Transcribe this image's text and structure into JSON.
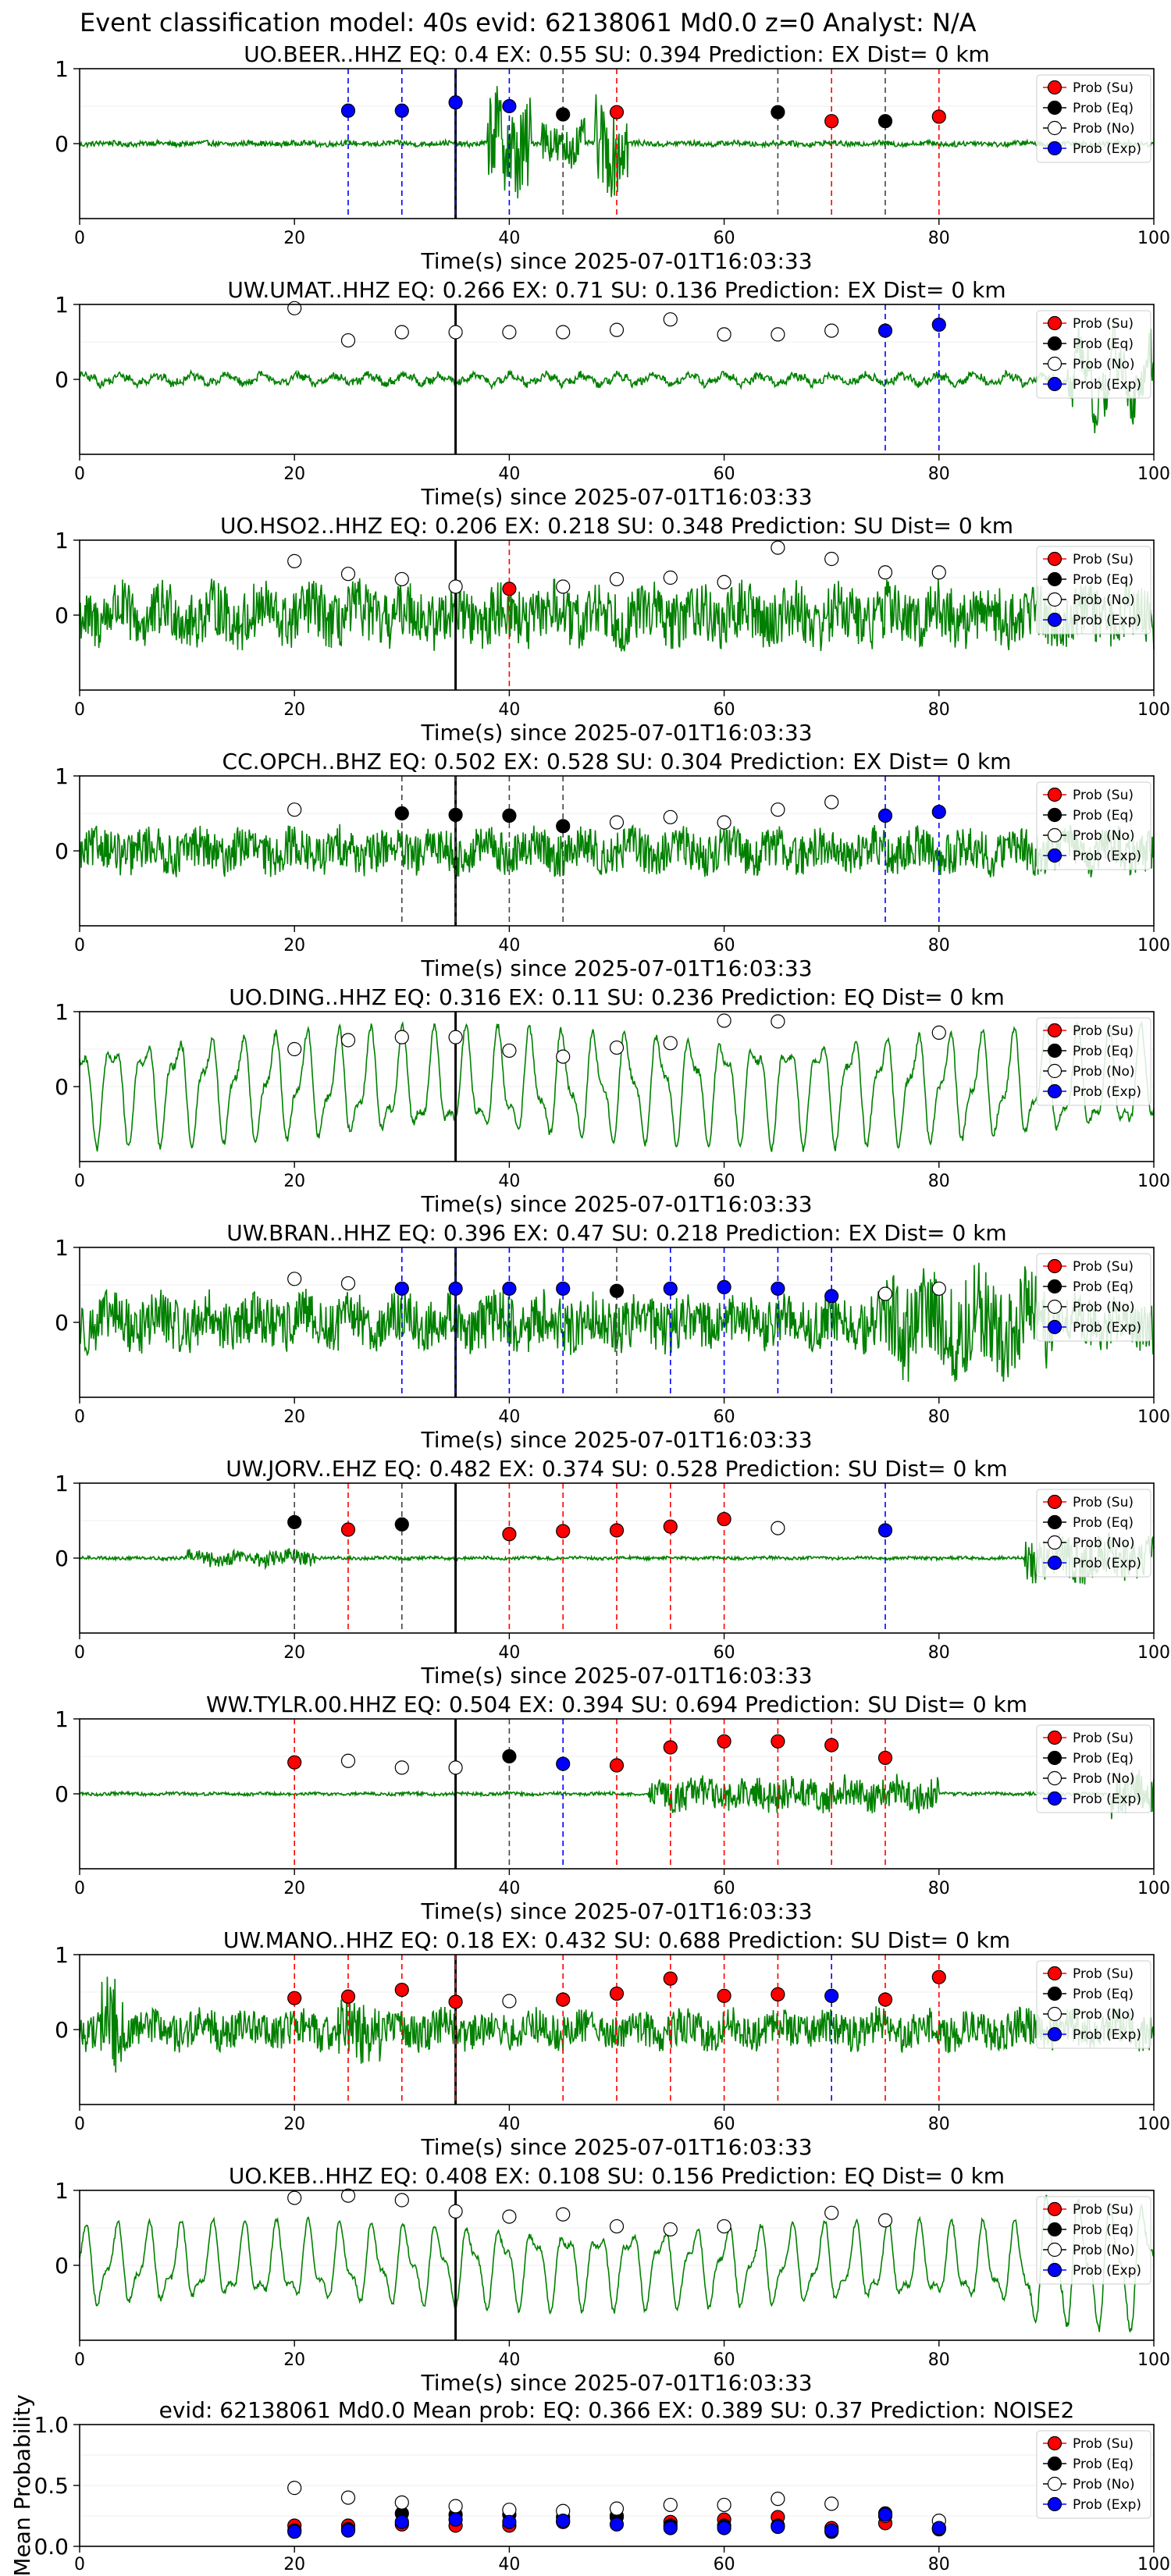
{
  "figure_title": "Event classification model: 40s evid: 62138061 Md0.0 z=0 Analyst: N/A",
  "legend_labels": [
    "Prob (Su)",
    "Prob (Eq)",
    "Prob (No)",
    "Prob (Exp)"
  ],
  "colors": {
    "su": "#ff0000",
    "eq": "#000000",
    "no": "#ffffff",
    "exp": "#0000ff",
    "trace": "#008000",
    "origin_line": "#000000"
  },
  "chart_data": [
    {
      "type": "line",
      "title": "UO.BEER..HHZ   EQ: 0.4  EX: 0.55  SU: 0.394   Prediction: EX    Dist= 0 km",
      "xlabel": "Time(s) since 2025-07-01T16:03:33",
      "ylabel": "",
      "xlim": [
        0,
        100
      ],
      "ylim": [
        -1,
        1
      ],
      "xticks": [
        0,
        20,
        40,
        60,
        80,
        100
      ],
      "yticks": [
        0,
        1
      ],
      "origin_time": 35,
      "trace": {
        "style": "bursts",
        "base_amp": 0.05,
        "bursts": [
          [
            38,
            42,
            0.9
          ],
          [
            43,
            47,
            0.4
          ],
          [
            48,
            51,
            0.8
          ]
        ]
      },
      "points": [
        {
          "x": 25,
          "cls": "exp",
          "p": 0.44
        },
        {
          "x": 30,
          "cls": "exp",
          "p": 0.44
        },
        {
          "x": 35,
          "cls": "exp",
          "p": 0.55
        },
        {
          "x": 40,
          "cls": "exp",
          "p": 0.5
        },
        {
          "x": 45,
          "cls": "eq",
          "p": 0.39
        },
        {
          "x": 50,
          "cls": "su",
          "p": 0.42
        },
        {
          "x": 65,
          "cls": "eq",
          "p": 0.42
        },
        {
          "x": 70,
          "cls": "su",
          "p": 0.3
        },
        {
          "x": 75,
          "cls": "eq",
          "p": 0.3
        },
        {
          "x": 80,
          "cls": "su",
          "p": 0.36
        }
      ]
    },
    {
      "type": "line",
      "title": "UW.UMAT..HHZ   EQ: 0.266  EX: 0.71  SU: 0.136   Prediction: EX    Dist= 0 km",
      "xlabel": "Time(s) since 2025-07-01T16:03:33",
      "ylabel": "",
      "xlim": [
        0,
        100
      ],
      "ylim": [
        -1,
        1
      ],
      "xticks": [
        0,
        20,
        40,
        60,
        80,
        100
      ],
      "yticks": [
        0,
        1
      ],
      "origin_time": 35,
      "trace": {
        "style": "steady",
        "base_amp": 0.12,
        "bursts": [
          [
            92,
            100,
            0.8
          ]
        ]
      },
      "points": [
        {
          "x": 20,
          "cls": "no",
          "p": 0.95
        },
        {
          "x": 25,
          "cls": "no",
          "p": 0.52
        },
        {
          "x": 30,
          "cls": "no",
          "p": 0.63
        },
        {
          "x": 35,
          "cls": "no",
          "p": 0.63
        },
        {
          "x": 40,
          "cls": "no",
          "p": 0.63
        },
        {
          "x": 45,
          "cls": "no",
          "p": 0.63
        },
        {
          "x": 50,
          "cls": "no",
          "p": 0.66
        },
        {
          "x": 55,
          "cls": "no",
          "p": 0.8
        },
        {
          "x": 60,
          "cls": "no",
          "p": 0.6
        },
        {
          "x": 65,
          "cls": "no",
          "p": 0.6
        },
        {
          "x": 70,
          "cls": "no",
          "p": 0.65
        },
        {
          "x": 75,
          "cls": "exp",
          "p": 0.65
        },
        {
          "x": 80,
          "cls": "exp",
          "p": 0.73
        }
      ]
    },
    {
      "type": "line",
      "title": "UO.HSO2..HHZ   EQ: 0.206  EX: 0.218  SU: 0.348   Prediction: SU    Dist= 0 km",
      "xlabel": "Time(s) since 2025-07-01T16:03:33",
      "ylabel": "",
      "xlim": [
        0,
        100
      ],
      "ylim": [
        -1,
        1
      ],
      "xticks": [
        0,
        20,
        40,
        60,
        80,
        100
      ],
      "yticks": [
        0,
        1
      ],
      "origin_time": 35,
      "trace": {
        "style": "noisy",
        "base_amp": 0.55,
        "bursts": []
      },
      "points": [
        {
          "x": 20,
          "cls": "no",
          "p": 0.72
        },
        {
          "x": 25,
          "cls": "no",
          "p": 0.55
        },
        {
          "x": 30,
          "cls": "no",
          "p": 0.48
        },
        {
          "x": 35,
          "cls": "no",
          "p": 0.38
        },
        {
          "x": 40,
          "cls": "su",
          "p": 0.35
        },
        {
          "x": 45,
          "cls": "no",
          "p": 0.38
        },
        {
          "x": 50,
          "cls": "no",
          "p": 0.48
        },
        {
          "x": 55,
          "cls": "no",
          "p": 0.5
        },
        {
          "x": 60,
          "cls": "no",
          "p": 0.44
        },
        {
          "x": 65,
          "cls": "no",
          "p": 0.9
        },
        {
          "x": 70,
          "cls": "no",
          "p": 0.75
        },
        {
          "x": 75,
          "cls": "no",
          "p": 0.57
        },
        {
          "x": 80,
          "cls": "no",
          "p": 0.57
        }
      ]
    },
    {
      "type": "line",
      "title": "CC.OPCH..BHZ   EQ: 0.502  EX: 0.528  SU: 0.304   Prediction: EX    Dist= 0 km",
      "xlabel": "Time(s) since 2025-07-01T16:03:33",
      "ylabel": "",
      "xlim": [
        0,
        100
      ],
      "ylim": [
        -1,
        1
      ],
      "xticks": [
        0,
        20,
        40,
        60,
        80,
        100
      ],
      "yticks": [
        0,
        1
      ],
      "origin_time": 35,
      "trace": {
        "style": "noisy",
        "base_amp": 0.4,
        "bursts": []
      },
      "points": [
        {
          "x": 20,
          "cls": "no",
          "p": 0.55
        },
        {
          "x": 30,
          "cls": "eq",
          "p": 0.5
        },
        {
          "x": 35,
          "cls": "eq",
          "p": 0.48
        },
        {
          "x": 40,
          "cls": "eq",
          "p": 0.47
        },
        {
          "x": 45,
          "cls": "eq",
          "p": 0.33
        },
        {
          "x": 50,
          "cls": "no",
          "p": 0.38
        },
        {
          "x": 55,
          "cls": "no",
          "p": 0.45
        },
        {
          "x": 60,
          "cls": "no",
          "p": 0.38
        },
        {
          "x": 65,
          "cls": "no",
          "p": 0.55
        },
        {
          "x": 70,
          "cls": "no",
          "p": 0.65
        },
        {
          "x": 75,
          "cls": "exp",
          "p": 0.47
        },
        {
          "x": 80,
          "cls": "exp",
          "p": 0.52
        }
      ]
    },
    {
      "type": "line",
      "title": "UO.DING..HHZ   EQ: 0.316  EX: 0.11  SU: 0.236   Prediction: EQ    Dist= 0 km",
      "xlabel": "Time(s) since 2025-07-01T16:03:33",
      "ylabel": "",
      "xlim": [
        0,
        100
      ],
      "ylim": [
        -1,
        1
      ],
      "xticks": [
        0,
        20,
        40,
        60,
        80,
        100
      ],
      "yticks": [
        0,
        1
      ],
      "origin_time": 35,
      "trace": {
        "style": "smooth",
        "base_amp": 0.8,
        "bursts": []
      },
      "points": [
        {
          "x": 20,
          "cls": "no",
          "p": 0.5
        },
        {
          "x": 25,
          "cls": "no",
          "p": 0.62
        },
        {
          "x": 30,
          "cls": "no",
          "p": 0.66
        },
        {
          "x": 35,
          "cls": "no",
          "p": 0.66
        },
        {
          "x": 40,
          "cls": "no",
          "p": 0.48
        },
        {
          "x": 45,
          "cls": "no",
          "p": 0.4
        },
        {
          "x": 50,
          "cls": "no",
          "p": 0.52
        },
        {
          "x": 55,
          "cls": "no",
          "p": 0.58
        },
        {
          "x": 60,
          "cls": "no",
          "p": 0.88
        },
        {
          "x": 65,
          "cls": "no",
          "p": 0.87
        },
        {
          "x": 80,
          "cls": "no",
          "p": 0.72
        }
      ]
    },
    {
      "type": "line",
      "title": "UW.BRAN..HHZ   EQ: 0.396  EX: 0.47  SU: 0.218   Prediction: EX    Dist= 0 km",
      "xlabel": "Time(s) since 2025-07-01T16:03:33",
      "ylabel": "",
      "xlim": [
        0,
        100
      ],
      "ylim": [
        -1,
        1
      ],
      "xticks": [
        0,
        20,
        40,
        60,
        80,
        100
      ],
      "yticks": [
        0,
        1
      ],
      "origin_time": 35,
      "trace": {
        "style": "noisy",
        "base_amp": 0.5,
        "bursts": [
          [
            75,
            90,
            0.9
          ]
        ]
      },
      "points": [
        {
          "x": 20,
          "cls": "no",
          "p": 0.58
        },
        {
          "x": 25,
          "cls": "no",
          "p": 0.52
        },
        {
          "x": 30,
          "cls": "exp",
          "p": 0.45
        },
        {
          "x": 35,
          "cls": "exp",
          "p": 0.45
        },
        {
          "x": 40,
          "cls": "exp",
          "p": 0.45
        },
        {
          "x": 45,
          "cls": "exp",
          "p": 0.45
        },
        {
          "x": 50,
          "cls": "eq",
          "p": 0.42
        },
        {
          "x": 55,
          "cls": "exp",
          "p": 0.45
        },
        {
          "x": 60,
          "cls": "exp",
          "p": 0.47
        },
        {
          "x": 65,
          "cls": "exp",
          "p": 0.45
        },
        {
          "x": 70,
          "cls": "exp",
          "p": 0.35
        },
        {
          "x": 75,
          "cls": "no",
          "p": 0.38
        },
        {
          "x": 80,
          "cls": "no",
          "p": 0.45
        }
      ]
    },
    {
      "type": "line",
      "title": "UW.JORV..EHZ   EQ: 0.482  EX: 0.374  SU: 0.528   Prediction: SU    Dist= 0 km",
      "xlabel": "Time(s) since 2025-07-01T16:03:33",
      "ylabel": "",
      "xlim": [
        0,
        100
      ],
      "ylim": [
        -1,
        1
      ],
      "xticks": [
        0,
        20,
        40,
        60,
        80,
        100
      ],
      "yticks": [
        0,
        1
      ],
      "origin_time": 35,
      "trace": {
        "style": "quiet",
        "base_amp": 0.03,
        "bursts": [
          [
            10,
            22,
            0.15
          ],
          [
            88,
            100,
            0.4
          ]
        ]
      },
      "points": [
        {
          "x": 20,
          "cls": "eq",
          "p": 0.48
        },
        {
          "x": 25,
          "cls": "su",
          "p": 0.38
        },
        {
          "x": 30,
          "cls": "eq",
          "p": 0.45
        },
        {
          "x": 40,
          "cls": "su",
          "p": 0.32
        },
        {
          "x": 45,
          "cls": "su",
          "p": 0.36
        },
        {
          "x": 50,
          "cls": "su",
          "p": 0.37
        },
        {
          "x": 55,
          "cls": "su",
          "p": 0.42
        },
        {
          "x": 60,
          "cls": "su",
          "p": 0.52
        },
        {
          "x": 65,
          "cls": "no",
          "p": 0.4
        },
        {
          "x": 75,
          "cls": "exp",
          "p": 0.37
        }
      ]
    },
    {
      "type": "line",
      "title": "WW.TYLR.00.HHZ   EQ: 0.504  EX: 0.394  SU: 0.694   Prediction: SU    Dist= 0 km",
      "xlabel": "Time(s) since 2025-07-01T16:03:33",
      "ylabel": "",
      "xlim": [
        0,
        100
      ],
      "ylim": [
        -1,
        1
      ],
      "xticks": [
        0,
        20,
        40,
        60,
        80,
        100
      ],
      "yticks": [
        0,
        1
      ],
      "origin_time": 35,
      "trace": {
        "style": "quiet",
        "base_amp": 0.03,
        "bursts": [
          [
            53,
            80,
            0.3
          ],
          [
            96,
            100,
            0.4
          ]
        ]
      },
      "points": [
        {
          "x": 20,
          "cls": "su",
          "p": 0.42
        },
        {
          "x": 25,
          "cls": "no",
          "p": 0.44
        },
        {
          "x": 30,
          "cls": "no",
          "p": 0.35
        },
        {
          "x": 35,
          "cls": "no",
          "p": 0.35
        },
        {
          "x": 40,
          "cls": "eq",
          "p": 0.5
        },
        {
          "x": 45,
          "cls": "exp",
          "p": 0.4
        },
        {
          "x": 50,
          "cls": "su",
          "p": 0.38
        },
        {
          "x": 55,
          "cls": "su",
          "p": 0.62
        },
        {
          "x": 60,
          "cls": "su",
          "p": 0.7
        },
        {
          "x": 65,
          "cls": "su",
          "p": 0.7
        },
        {
          "x": 70,
          "cls": "su",
          "p": 0.65
        },
        {
          "x": 75,
          "cls": "su",
          "p": 0.48
        }
      ]
    },
    {
      "type": "line",
      "title": "UW.MANO..HHZ   EQ: 0.18  EX: 0.432  SU: 0.688   Prediction: SU    Dist= 0 km",
      "xlabel": "Time(s) since 2025-07-01T16:03:33",
      "ylabel": "",
      "xlim": [
        0,
        100
      ],
      "ylim": [
        -1,
        1
      ],
      "xticks": [
        0,
        20,
        40,
        60,
        80,
        100
      ],
      "yticks": [
        0,
        1
      ],
      "origin_time": 35,
      "trace": {
        "style": "noisy",
        "base_amp": 0.35,
        "bursts": [
          [
            2,
            4,
            0.9
          ],
          [
            24,
            28,
            0.6
          ]
        ]
      },
      "points": [
        {
          "x": 20,
          "cls": "su",
          "p": 0.42
        },
        {
          "x": 25,
          "cls": "su",
          "p": 0.44
        },
        {
          "x": 30,
          "cls": "su",
          "p": 0.53
        },
        {
          "x": 35,
          "cls": "su",
          "p": 0.37
        },
        {
          "x": 40,
          "cls": "no",
          "p": 0.38
        },
        {
          "x": 45,
          "cls": "su",
          "p": 0.4
        },
        {
          "x": 50,
          "cls": "su",
          "p": 0.48
        },
        {
          "x": 55,
          "cls": "su",
          "p": 0.68
        },
        {
          "x": 60,
          "cls": "su",
          "p": 0.45
        },
        {
          "x": 65,
          "cls": "su",
          "p": 0.47
        },
        {
          "x": 70,
          "cls": "exp",
          "p": 0.45
        },
        {
          "x": 75,
          "cls": "su",
          "p": 0.4
        },
        {
          "x": 80,
          "cls": "su",
          "p": 0.7
        }
      ]
    },
    {
      "type": "line",
      "title": "UO.KEB..HHZ   EQ: 0.408  EX: 0.108  SU: 0.156   Prediction: EQ    Dist= 0 km",
      "xlabel": "Time(s) since 2025-07-01T16:03:33",
      "ylabel": "",
      "xlim": [
        0,
        100
      ],
      "ylim": [
        -1,
        1
      ],
      "xticks": [
        0,
        20,
        40,
        60,
        80,
        100
      ],
      "yticks": [
        0,
        1
      ],
      "origin_time": 35,
      "trace": {
        "style": "smooth",
        "base_amp": 0.6,
        "bursts": [
          [
            88,
            100,
            0.95
          ]
        ]
      },
      "points": [
        {
          "x": 20,
          "cls": "no",
          "p": 0.9
        },
        {
          "x": 25,
          "cls": "no",
          "p": 0.93
        },
        {
          "x": 30,
          "cls": "no",
          "p": 0.87
        },
        {
          "x": 35,
          "cls": "no",
          "p": 0.72
        },
        {
          "x": 40,
          "cls": "no",
          "p": 0.65
        },
        {
          "x": 45,
          "cls": "no",
          "p": 0.68
        },
        {
          "x": 50,
          "cls": "no",
          "p": 0.52
        },
        {
          "x": 55,
          "cls": "no",
          "p": 0.48
        },
        {
          "x": 60,
          "cls": "no",
          "p": 0.52
        },
        {
          "x": 70,
          "cls": "no",
          "p": 0.7
        },
        {
          "x": 75,
          "cls": "no",
          "p": 0.6
        }
      ]
    },
    {
      "type": "scatter",
      "title": "evid: 62138061   Md0.0   Mean prob:   EQ: 0.366  EX: 0.389  SU: 0.37   Prediction: NOISE2",
      "xlabel": "",
      "ylabel": "Mean Probability",
      "xlim": [
        0,
        100
      ],
      "ylim": [
        0,
        1
      ],
      "xticks": [
        0,
        20,
        40,
        60,
        80,
        100
      ],
      "yticks": [
        0.0,
        0.5,
        1.0
      ],
      "ytick_labels": [
        "0.0",
        "0.5",
        "1.0"
      ],
      "x": [
        20,
        25,
        30,
        35,
        40,
        45,
        50,
        55,
        60,
        65,
        70,
        75,
        80
      ],
      "series": [
        {
          "name": "Prob (Su)",
          "cls": "su",
          "values": [
            0.17,
            0.17,
            0.18,
            0.17,
            0.17,
            0.2,
            0.24,
            0.2,
            0.22,
            0.24,
            0.15,
            0.19,
            0.14
          ]
        },
        {
          "name": "Prob (Eq)",
          "cls": "eq",
          "values": [
            0.13,
            0.14,
            0.27,
            0.26,
            0.26,
            0.24,
            0.25,
            0.17,
            0.17,
            0.17,
            0.12,
            0.27,
            0.15
          ]
        },
        {
          "name": "Prob (No)",
          "cls": "no",
          "values": [
            0.48,
            0.4,
            0.36,
            0.33,
            0.3,
            0.29,
            0.31,
            0.34,
            0.34,
            0.39,
            0.35,
            0.25,
            0.21
          ]
        },
        {
          "name": "Prob (Exp)",
          "cls": "exp",
          "values": [
            0.12,
            0.13,
            0.2,
            0.22,
            0.2,
            0.21,
            0.18,
            0.15,
            0.15,
            0.16,
            0.13,
            0.26,
            0.15
          ]
        }
      ]
    }
  ]
}
